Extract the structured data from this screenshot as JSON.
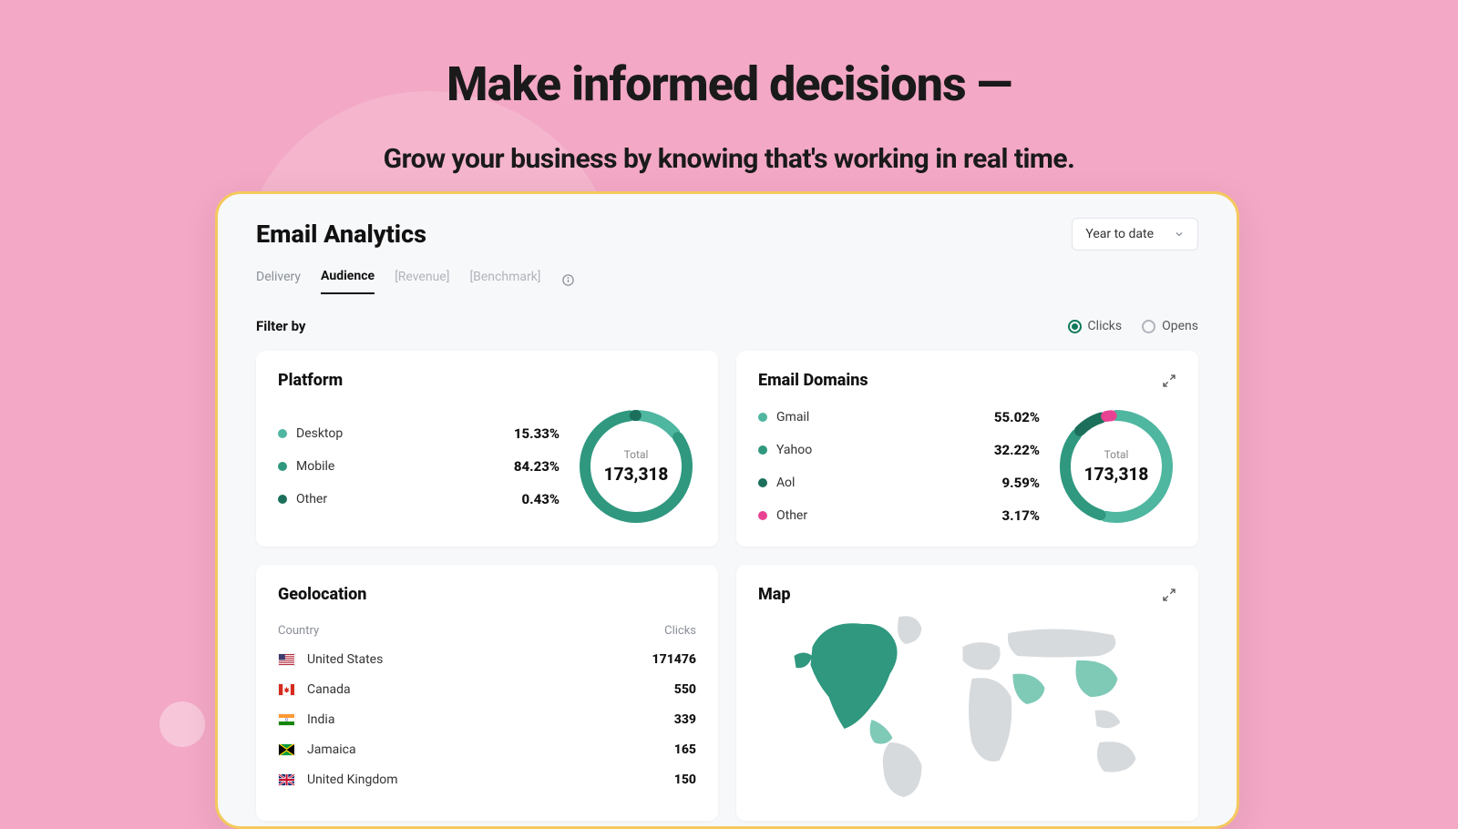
{
  "hero": {
    "title": "Make informed decisions —",
    "subtitle": "Grow your business by knowing that's working in real time."
  },
  "colors": {
    "page_bg": "#f3a8c5",
    "frame_bg": "#f7f8fa",
    "frame_border": "#f4c95d",
    "text_primary": "#111111",
    "text_muted": "#8a8f98",
    "accent_green": "#0f7a5a",
    "teal_1": "#4fb6a0",
    "teal_2": "#2f987f",
    "teal_3": "#1b6f5b",
    "pink": "#e84393",
    "map_land": "#d7dadd",
    "map_high": "#2f987f",
    "map_med": "#7fc9b7"
  },
  "dashboard": {
    "title": "Email Analytics",
    "date_dropdown": "Year to date",
    "tabs": [
      {
        "label": "Delivery",
        "state": "normal"
      },
      {
        "label": "Audience",
        "state": "active"
      },
      {
        "label": "[Revenue]",
        "state": "muted"
      },
      {
        "label": "[Benchmark]",
        "state": "muted"
      }
    ],
    "filter_label": "Filter by",
    "radios": [
      {
        "label": "Clicks",
        "selected": true
      },
      {
        "label": "Opens",
        "selected": false
      }
    ]
  },
  "platform_card": {
    "title": "Platform",
    "type": "donut",
    "total_label": "Total",
    "total_value": "173,318",
    "items": [
      {
        "label": "Desktop",
        "value": 15.33,
        "display": "15.33%",
        "color": "#4fb6a0"
      },
      {
        "label": "Mobile",
        "value": 84.23,
        "display": "84.23%",
        "color": "#2f987f"
      },
      {
        "label": "Other",
        "value": 0.43,
        "display": "0.43%",
        "color": "#1b6f5b"
      }
    ],
    "donut": {
      "radius": 56,
      "stroke": 12,
      "gap_deg": 6
    }
  },
  "domains_card": {
    "title": "Email Domains",
    "type": "donut",
    "total_label": "Total",
    "total_value": "173,318",
    "items": [
      {
        "label": "Gmail",
        "value": 55.02,
        "display": "55.02%",
        "color": "#4fb6a0"
      },
      {
        "label": "Yahoo",
        "value": 32.22,
        "display": "32.22%",
        "color": "#2f987f"
      },
      {
        "label": "Aol",
        "value": 9.59,
        "display": "9.59%",
        "color": "#1b6f5b"
      },
      {
        "label": "Other",
        "value": 3.17,
        "display": "3.17%",
        "color": "#e84393"
      }
    ],
    "donut": {
      "radius": 56,
      "stroke": 12,
      "gap_deg": 6
    }
  },
  "geo_card": {
    "title": "Geolocation",
    "columns": {
      "left": "Country",
      "right": "Clicks"
    },
    "rows": [
      {
        "flag": "us",
        "country": "United States",
        "clicks": "171476"
      },
      {
        "flag": "ca",
        "country": "Canada",
        "clicks": "550"
      },
      {
        "flag": "in",
        "country": "India",
        "clicks": "339"
      },
      {
        "flag": "jm",
        "country": "Jamaica",
        "clicks": "165"
      },
      {
        "flag": "gb",
        "country": "United Kingdom",
        "clicks": "150"
      }
    ]
  },
  "map_card": {
    "title": "Map",
    "type": "choropleth",
    "land_color": "#d7dadd",
    "ocean_color": "#ffffff",
    "highlights": [
      {
        "region": "north_america",
        "color": "#2f987f"
      },
      {
        "region": "caribbean",
        "color": "#7fc9b7"
      },
      {
        "region": "east_asia",
        "color": "#7fc9b7"
      },
      {
        "region": "south_asia",
        "color": "#7fc9b7"
      }
    ]
  }
}
